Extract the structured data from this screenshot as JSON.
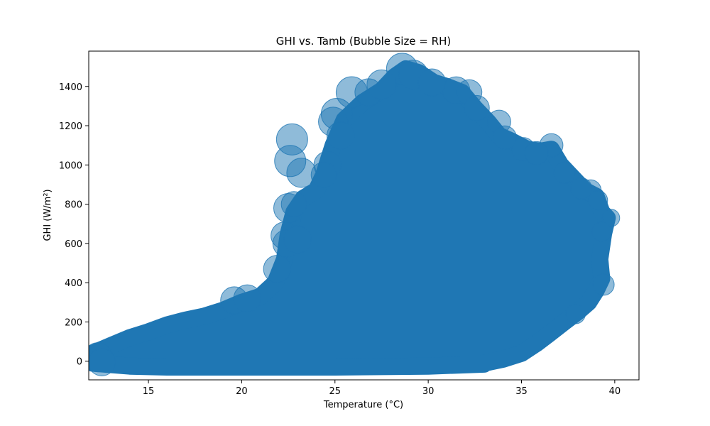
{
  "chart_data": {
    "type": "scatter",
    "title": "GHI vs. Tamb (Bubble Size = RH)",
    "xlabel": "Temperature (°C)",
    "ylabel": "GHI (W/m²)",
    "xlim": [
      11.8,
      41.3
    ],
    "ylim": [
      -95,
      1580
    ],
    "xticks": [
      15,
      20,
      25,
      30,
      35,
      40
    ],
    "yticks": [
      0,
      200,
      400,
      600,
      800,
      1000,
      1200,
      1400
    ],
    "grid": false,
    "legend": "none",
    "color": "#1f77b4",
    "alpha": 0.5,
    "size_encoding": "RH",
    "bubble_radius_range_px": [
      8,
      22
    ],
    "envelope_upper": [
      [
        12.0,
        40
      ],
      [
        13.0,
        80
      ],
      [
        14.0,
        120
      ],
      [
        15.0,
        150
      ],
      [
        16.0,
        185
      ],
      [
        17.0,
        210
      ],
      [
        18.0,
        230
      ],
      [
        19.0,
        260
      ],
      [
        20.0,
        300
      ],
      [
        21.0,
        330
      ],
      [
        21.8,
        400
      ],
      [
        22.3,
        520
      ],
      [
        22.5,
        650
      ],
      [
        22.8,
        760
      ],
      [
        23.3,
        830
      ],
      [
        24.0,
        870
      ],
      [
        24.4,
        950
      ],
      [
        24.9,
        1100
      ],
      [
        25.5,
        1230
      ],
      [
        26.5,
        1320
      ],
      [
        27.5,
        1380
      ],
      [
        28.2,
        1450
      ],
      [
        28.8,
        1490
      ],
      [
        29.5,
        1470
      ],
      [
        30.3,
        1420
      ],
      [
        31.0,
        1400
      ],
      [
        31.8,
        1370
      ],
      [
        32.5,
        1290
      ],
      [
        33.2,
        1220
      ],
      [
        33.8,
        1150
      ],
      [
        34.5,
        1120
      ],
      [
        35.3,
        1080
      ],
      [
        36.0,
        1070
      ],
      [
        36.6,
        1080
      ],
      [
        37.1,
        1000
      ],
      [
        37.6,
        950
      ],
      [
        38.4,
        870
      ],
      [
        39.0,
        840
      ],
      [
        39.3,
        760
      ],
      [
        39.6,
        730
      ],
      [
        39.4,
        650
      ],
      [
        39.2,
        520
      ],
      [
        39.3,
        420
      ],
      [
        39.0,
        360
      ],
      [
        38.6,
        300
      ],
      [
        38.0,
        250
      ],
      [
        37.3,
        200
      ],
      [
        36.5,
        140
      ],
      [
        35.8,
        90
      ],
      [
        35.0,
        40
      ],
      [
        34.0,
        10
      ],
      [
        33.0,
        -10
      ]
    ],
    "envelope_lower": [
      [
        12.0,
        -10
      ],
      [
        14.0,
        -25
      ],
      [
        16.0,
        -30
      ],
      [
        20.0,
        -30
      ],
      [
        25.0,
        -30
      ],
      [
        30.0,
        -25
      ],
      [
        33.0,
        -15
      ]
    ],
    "outlier_bubbles": [
      [
        22.7,
        1130,
        1.0
      ],
      [
        22.6,
        1020,
        1.0
      ],
      [
        23.2,
        960,
        0.9
      ],
      [
        22.5,
        780,
        0.9
      ],
      [
        22.3,
        640,
        0.8
      ],
      [
        22.4,
        600,
        0.8
      ],
      [
        22.8,
        800,
        0.7
      ],
      [
        25.9,
        1370,
        1.0
      ],
      [
        25.1,
        1260,
        1.0
      ],
      [
        24.9,
        1220,
        0.9
      ],
      [
        26.8,
        1370,
        0.8
      ],
      [
        28.6,
        1490,
        1.0
      ],
      [
        29.2,
        1460,
        0.9
      ],
      [
        31.5,
        1380,
        0.8
      ],
      [
        32.2,
        1370,
        0.7
      ],
      [
        32.6,
        1290,
        0.7
      ],
      [
        33.8,
        1220,
        0.6
      ],
      [
        35.1,
        1080,
        0.6
      ],
      [
        36.6,
        1100,
        0.6
      ],
      [
        37.3,
        960,
        0.5
      ],
      [
        38.7,
        870,
        0.5
      ],
      [
        39.1,
        820,
        0.4
      ],
      [
        39.8,
        730,
        0.3
      ],
      [
        39.3,
        660,
        0.4
      ],
      [
        39.4,
        390,
        0.5
      ],
      [
        37.9,
        240,
        0.4
      ],
      [
        19.6,
        310,
        0.8
      ],
      [
        20.3,
        320,
        0.8
      ],
      [
        21.9,
        470,
        0.8
      ],
      [
        23.0,
        620,
        0.8
      ],
      [
        24.6,
        1000,
        0.8
      ],
      [
        25.3,
        1150,
        0.8
      ],
      [
        24.4,
        950,
        0.7
      ],
      [
        27.5,
        1410,
        0.9
      ],
      [
        30.2,
        1420,
        0.8
      ],
      [
        34.1,
        1140,
        0.6
      ],
      [
        35.8,
        1060,
        0.6
      ],
      [
        38.2,
        880,
        0.5
      ],
      [
        12.3,
        20,
        0.9
      ],
      [
        12.5,
        -5,
        0.8
      ]
    ]
  }
}
